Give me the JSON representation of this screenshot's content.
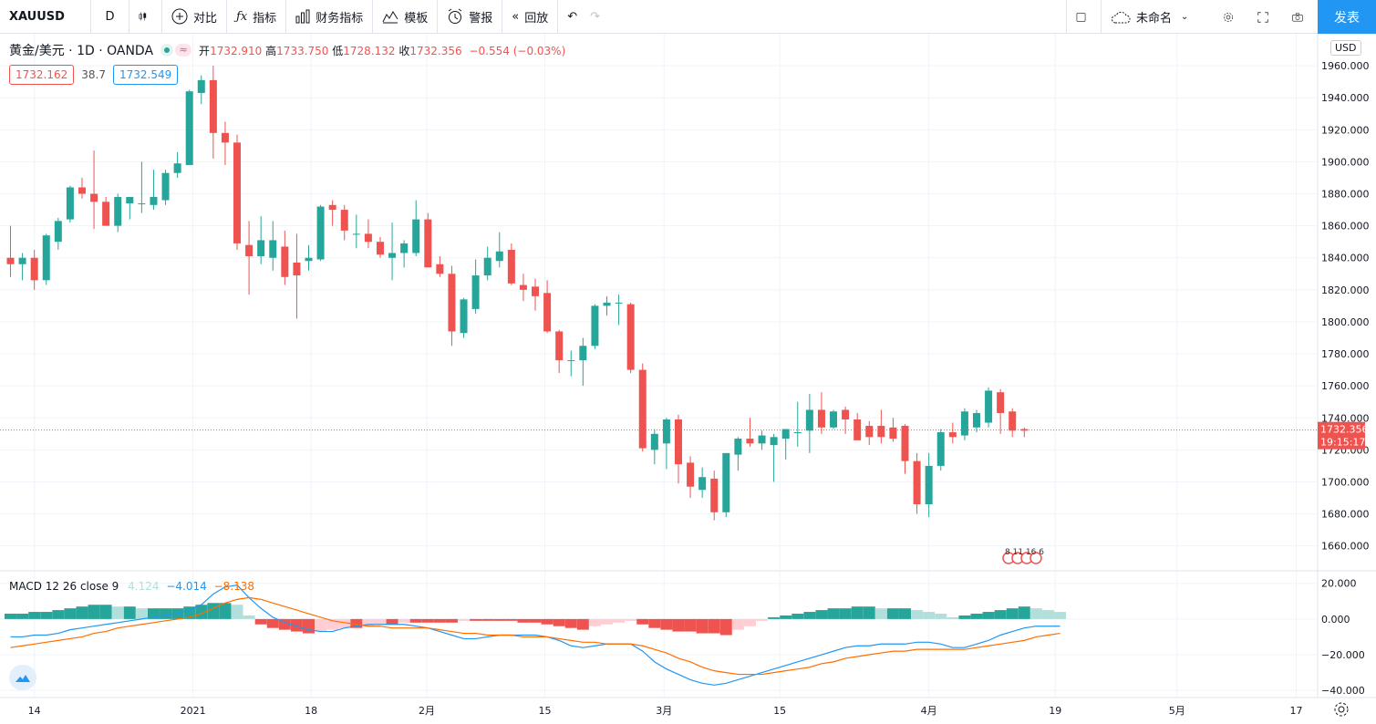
{
  "toolbar": {
    "symbol": "XAUUSD",
    "interval": "D",
    "compare": "对比",
    "indicators": "指标",
    "financials": "财务指标",
    "templates": "模板",
    "alerts": "警报",
    "replay": "回放",
    "layout_name": "未命名",
    "publish": "发表"
  },
  "legend": {
    "title": "黄金/美元 · 1D · OANDA",
    "open_label": "开",
    "open": "1732.910",
    "high_label": "高",
    "high": "1733.750",
    "low_label": "低",
    "low": "1728.132",
    "close_label": "收",
    "close": "1732.356",
    "change": "−0.554 (−0.03%)",
    "bid": "1732.162",
    "spread": "38.7",
    "ask": "1732.549"
  },
  "currency": "USD",
  "price_tag": {
    "price": "1732.356",
    "countdown": "19:15:17"
  },
  "event_badges": "8 11 16 6",
  "macd_legend": {
    "label": "MACD 12 26 close 9",
    "hist": "4.124",
    "macd": "−4.014",
    "signal": "−8.138"
  },
  "colors": {
    "up": "#26a69a",
    "down": "#ef5350",
    "macd": "#2196f3",
    "signal": "#ff6d00",
    "accent": "#2196f3"
  },
  "chart_data": [
    {
      "type": "candlestick",
      "title": "黄金/美元 · 1D · OANDA",
      "x_ticks": [
        "14",
        "2021",
        "18",
        "2月",
        "15",
        "3月",
        "15",
        "4月",
        "19",
        "5月",
        "17"
      ],
      "y_ticks": [
        "1660.000",
        "1680.000",
        "1700.000",
        "1720.000",
        "1740.000",
        "1760.000",
        "1780.000",
        "1800.000",
        "1820.000",
        "1840.000",
        "1860.000",
        "1880.000",
        "1900.000",
        "1920.000",
        "1940.000",
        "1960.000"
      ],
      "ylim": [
        1645,
        1980
      ],
      "candles": [
        {
          "o": 1840,
          "h": 1860,
          "l": 1828,
          "c": 1836
        },
        {
          "o": 1836,
          "h": 1843,
          "l": 1826,
          "c": 1840
        },
        {
          "o": 1840,
          "h": 1845,
          "l": 1820,
          "c": 1826
        },
        {
          "o": 1826,
          "h": 1855,
          "l": 1823,
          "c": 1854
        },
        {
          "o": 1850,
          "h": 1865,
          "l": 1845,
          "c": 1863
        },
        {
          "o": 1864,
          "h": 1885,
          "l": 1862,
          "c": 1884
        },
        {
          "o": 1884,
          "h": 1890,
          "l": 1877,
          "c": 1880
        },
        {
          "o": 1880,
          "h": 1907,
          "l": 1858,
          "c": 1875
        },
        {
          "o": 1875,
          "h": 1878,
          "l": 1860,
          "c": 1860
        },
        {
          "o": 1860,
          "h": 1880,
          "l": 1856,
          "c": 1878
        },
        {
          "o": 1874,
          "h": 1877,
          "l": 1864,
          "c": 1878
        },
        {
          "o": 1874,
          "h": 1900,
          "l": 1868,
          "c": 1874
        },
        {
          "o": 1873,
          "h": 1895,
          "l": 1870,
          "c": 1878
        },
        {
          "o": 1876,
          "h": 1895,
          "l": 1873,
          "c": 1893
        },
        {
          "o": 1893,
          "h": 1906,
          "l": 1890,
          "c": 1899
        },
        {
          "o": 1898,
          "h": 1945,
          "l": 1898,
          "c": 1944
        },
        {
          "o": 1943,
          "h": 1954,
          "l": 1936,
          "c": 1951
        },
        {
          "o": 1951,
          "h": 1960,
          "l": 1902,
          "c": 1918
        },
        {
          "o": 1918,
          "h": 1925,
          "l": 1898,
          "c": 1912
        },
        {
          "o": 1912,
          "h": 1917,
          "l": 1845,
          "c": 1849
        },
        {
          "o": 1848,
          "h": 1863,
          "l": 1817,
          "c": 1841
        },
        {
          "o": 1841,
          "h": 1866,
          "l": 1836,
          "c": 1851
        },
        {
          "o": 1840,
          "h": 1863,
          "l": 1832,
          "c": 1851
        },
        {
          "o": 1847,
          "h": 1857,
          "l": 1823,
          "c": 1828
        },
        {
          "o": 1837,
          "h": 1855,
          "l": 1802,
          "c": 1829
        },
        {
          "o": 1838,
          "h": 1848,
          "l": 1832,
          "c": 1840
        },
        {
          "o": 1839,
          "h": 1873,
          "l": 1838,
          "c": 1872
        },
        {
          "o": 1873,
          "h": 1876,
          "l": 1860,
          "c": 1870
        },
        {
          "o": 1870,
          "h": 1873,
          "l": 1851,
          "c": 1857
        },
        {
          "o": 1855,
          "h": 1867,
          "l": 1846,
          "c": 1855
        },
        {
          "o": 1855,
          "h": 1864,
          "l": 1846,
          "c": 1850
        },
        {
          "o": 1850,
          "h": 1853,
          "l": 1840,
          "c": 1842
        },
        {
          "o": 1840,
          "h": 1862,
          "l": 1826,
          "c": 1843
        },
        {
          "o": 1843,
          "h": 1851,
          "l": 1834,
          "c": 1849
        },
        {
          "o": 1843,
          "h": 1876,
          "l": 1841,
          "c": 1864
        },
        {
          "o": 1864,
          "h": 1868,
          "l": 1835,
          "c": 1834
        },
        {
          "o": 1836,
          "h": 1841,
          "l": 1828,
          "c": 1830
        },
        {
          "o": 1830,
          "h": 1835,
          "l": 1785,
          "c": 1794
        },
        {
          "o": 1793,
          "h": 1815,
          "l": 1790,
          "c": 1814
        },
        {
          "o": 1808,
          "h": 1839,
          "l": 1805,
          "c": 1829
        },
        {
          "o": 1829,
          "h": 1847,
          "l": 1826,
          "c": 1840
        },
        {
          "o": 1838,
          "h": 1856,
          "l": 1834,
          "c": 1844
        },
        {
          "o": 1845,
          "h": 1849,
          "l": 1823,
          "c": 1824
        },
        {
          "o": 1823,
          "h": 1830,
          "l": 1813,
          "c": 1820
        },
        {
          "o": 1822,
          "h": 1827,
          "l": 1807,
          "c": 1816
        },
        {
          "o": 1818,
          "h": 1826,
          "l": 1793,
          "c": 1794
        },
        {
          "o": 1794,
          "h": 1795,
          "l": 1768,
          "c": 1776
        },
        {
          "o": 1776,
          "h": 1782,
          "l": 1766,
          "c": 1776
        },
        {
          "o": 1776,
          "h": 1790,
          "l": 1760,
          "c": 1785
        },
        {
          "o": 1785,
          "h": 1811,
          "l": 1783,
          "c": 1810
        },
        {
          "o": 1810,
          "h": 1816,
          "l": 1804,
          "c": 1812
        },
        {
          "o": 1812,
          "h": 1817,
          "l": 1798,
          "c": 1812
        },
        {
          "o": 1811,
          "h": 1812,
          "l": 1768,
          "c": 1770
        },
        {
          "o": 1770,
          "h": 1774,
          "l": 1719,
          "c": 1721
        },
        {
          "o": 1720,
          "h": 1733,
          "l": 1711,
          "c": 1730
        },
        {
          "o": 1724,
          "h": 1740,
          "l": 1708,
          "c": 1739
        },
        {
          "o": 1739,
          "h": 1742,
          "l": 1699,
          "c": 1711
        },
        {
          "o": 1712,
          "h": 1716,
          "l": 1690,
          "c": 1697
        },
        {
          "o": 1695,
          "h": 1709,
          "l": 1690,
          "c": 1703
        },
        {
          "o": 1702,
          "h": 1707,
          "l": 1676,
          "c": 1681
        },
        {
          "o": 1681,
          "h": 1718,
          "l": 1678,
          "c": 1718
        },
        {
          "o": 1717,
          "h": 1728,
          "l": 1707,
          "c": 1727
        },
        {
          "o": 1727,
          "h": 1740,
          "l": 1722,
          "c": 1724
        },
        {
          "o": 1724,
          "h": 1732,
          "l": 1720,
          "c": 1729
        },
        {
          "o": 1723,
          "h": 1730,
          "l": 1700,
          "c": 1728
        },
        {
          "o": 1727,
          "h": 1733,
          "l": 1714,
          "c": 1733
        },
        {
          "o": 1731,
          "h": 1750,
          "l": 1722,
          "c": 1731
        },
        {
          "o": 1732,
          "h": 1755,
          "l": 1718,
          "c": 1745
        },
        {
          "o": 1745,
          "h": 1756,
          "l": 1730,
          "c": 1734
        },
        {
          "o": 1734,
          "h": 1745,
          "l": 1733,
          "c": 1744
        },
        {
          "o": 1745,
          "h": 1747,
          "l": 1730,
          "c": 1739
        },
        {
          "o": 1739,
          "h": 1743,
          "l": 1726,
          "c": 1726
        },
        {
          "o": 1735,
          "h": 1738,
          "l": 1723,
          "c": 1728
        },
        {
          "o": 1735,
          "h": 1745,
          "l": 1724,
          "c": 1728
        },
        {
          "o": 1734,
          "h": 1740,
          "l": 1725,
          "c": 1727
        },
        {
          "o": 1735,
          "h": 1736,
          "l": 1705,
          "c": 1713
        },
        {
          "o": 1713,
          "h": 1718,
          "l": 1680,
          "c": 1686
        },
        {
          "o": 1686,
          "h": 1718,
          "l": 1678,
          "c": 1710
        },
        {
          "o": 1710,
          "h": 1733,
          "l": 1707,
          "c": 1731
        },
        {
          "o": 1731,
          "h": 1737,
          "l": 1724,
          "c": 1728
        },
        {
          "o": 1729,
          "h": 1746,
          "l": 1726,
          "c": 1744
        },
        {
          "o": 1734,
          "h": 1745,
          "l": 1731,
          "c": 1743
        },
        {
          "o": 1737,
          "h": 1759,
          "l": 1734,
          "c": 1757
        },
        {
          "o": 1756,
          "h": 1758,
          "l": 1730,
          "c": 1743
        },
        {
          "o": 1744,
          "h": 1746,
          "l": 1728,
          "c": 1732
        },
        {
          "o": 1733,
          "h": 1734,
          "l": 1728,
          "c": 1732
        }
      ]
    },
    {
      "type": "macd",
      "title": "MACD 12 26 close 9",
      "y_ticks": [
        "20.000",
        "0.000",
        "−20.000",
        "−40.000"
      ],
      "ylim": [
        -44,
        26
      ],
      "hist": [
        3,
        3,
        4,
        4,
        5,
        6,
        7,
        8,
        8,
        7,
        7,
        6,
        6,
        6,
        6,
        7,
        8,
        9,
        9,
        8,
        2,
        -3,
        -5,
        -6,
        -7,
        -8,
        -7,
        -6,
        -5,
        -5,
        -4,
        -3,
        -3,
        -2,
        -2,
        -2,
        -2,
        -2,
        -1,
        -1,
        -1,
        -1,
        -1,
        -2,
        -2,
        -3,
        -4,
        -5,
        -6,
        -4,
        -3,
        -2,
        -1,
        -3,
        -5,
        -6,
        -7,
        -7,
        -8,
        -8,
        -9,
        -6,
        -4,
        -1,
        1,
        2,
        3,
        4,
        5,
        6,
        6,
        7,
        7,
        6,
        6,
        6,
        5,
        4,
        3,
        1,
        2,
        3,
        4,
        5,
        6,
        7,
        6,
        5,
        4
      ],
      "macd": [
        -10,
        -10,
        -9,
        -9,
        -8,
        -6,
        -5,
        -4,
        -3,
        -2,
        -1,
        0,
        1,
        2,
        3,
        5,
        8,
        14,
        18,
        19,
        12,
        6,
        1,
        -2,
        -4,
        -6,
        -7,
        -7,
        -5,
        -4,
        -3,
        -3,
        -3,
        -3,
        -4,
        -5,
        -7,
        -9,
        -11,
        -11,
        -10,
        -9,
        -9,
        -9,
        -9,
        -10,
        -12,
        -15,
        -16,
        -15,
        -14,
        -14,
        -14,
        -18,
        -24,
        -28,
        -31,
        -34,
        -36,
        -37,
        -36,
        -34,
        -32,
        -30,
        -28,
        -26,
        -24,
        -22,
        -20,
        -18,
        -16,
        -15,
        -15,
        -14,
        -14,
        -14,
        -13,
        -13,
        -14,
        -16,
        -16,
        -14,
        -12,
        -9,
        -7,
        -5,
        -4,
        -4,
        -4
      ],
      "signal": [
        -16,
        -15,
        -14,
        -13,
        -12,
        -11,
        -10,
        -8,
        -7,
        -5,
        -4,
        -3,
        -2,
        -1,
        0,
        1,
        3,
        6,
        9,
        11,
        12,
        11,
        9,
        7,
        5,
        3,
        1,
        -1,
        -2,
        -3,
        -4,
        -4,
        -5,
        -5,
        -5,
        -5,
        -6,
        -7,
        -8,
        -8,
        -9,
        -9,
        -9,
        -10,
        -10,
        -10,
        -11,
        -12,
        -13,
        -13,
        -14,
        -14,
        -14,
        -15,
        -17,
        -19,
        -22,
        -24,
        -27,
        -29,
        -30,
        -31,
        -31,
        -31,
        -30,
        -29,
        -28,
        -27,
        -25,
        -24,
        -22,
        -21,
        -20,
        -19,
        -18,
        -18,
        -17,
        -17,
        -17,
        -17,
        -17,
        -16,
        -15,
        -14,
        -13,
        -12,
        -10,
        -9,
        -8
      ]
    }
  ]
}
